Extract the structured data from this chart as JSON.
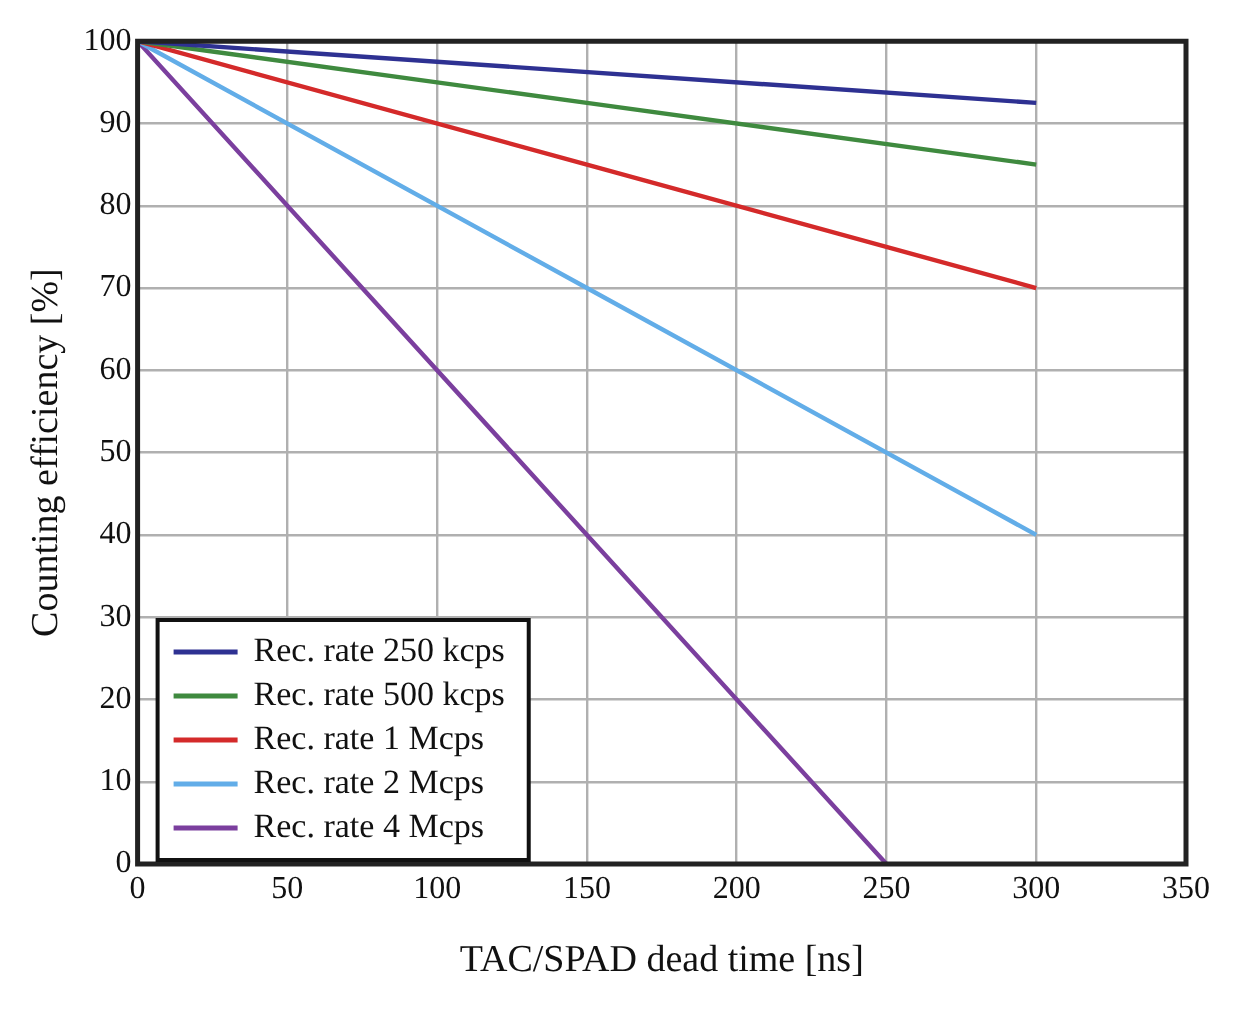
{
  "chart_data": {
    "type": "line",
    "xlabel": "TAC/SPAD dead time [ns]",
    "ylabel": "Counting efficiency [%]",
    "xlim": [
      0,
      350
    ],
    "xticks": [
      0,
      50,
      100,
      150,
      200,
      250,
      300,
      350
    ],
    "ylim": [
      0,
      100
    ],
    "yticks": [
      0,
      10,
      20,
      30,
      40,
      50,
      60,
      70,
      80,
      90,
      100
    ],
    "grid": true,
    "legend": "bottom left",
    "marker": "none",
    "line_style": "solid",
    "series": [
      {
        "name": "Rec. rate 250 kcps",
        "color": "#2e3192",
        "x": [
          0,
          300
        ],
        "values": [
          100,
          92.5
        ]
      },
      {
        "name": "Rec. rate 500 kcps",
        "color": "#3f8a3f",
        "x": [
          0,
          150,
          300
        ],
        "values": [
          100,
          92.5,
          85
        ]
      },
      {
        "name": "Rec. rate 1 Mcps",
        "color": "#d42a2a",
        "x": [
          0,
          150,
          300
        ],
        "values": [
          100,
          85,
          70
        ]
      },
      {
        "name": "Rec. rate 2 Mcps",
        "color": "#62ade8",
        "x": [
          0,
          150,
          300
        ],
        "values": [
          100,
          70,
          40
        ]
      },
      {
        "name": "Rec. rate 4 Mcps",
        "color": "#7b3f9e",
        "x": [
          0,
          125,
          250
        ],
        "values": [
          100,
          50,
          0
        ]
      }
    ]
  }
}
